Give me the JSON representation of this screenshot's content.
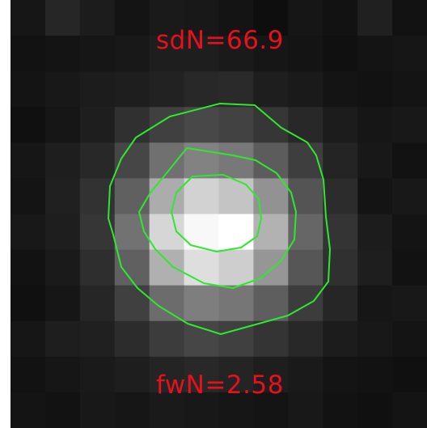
{
  "labels": {
    "top": "sdN=66.9",
    "bottom": "fwN=2.58"
  },
  "colors": {
    "label_text": "#e8101c",
    "contour": "#2ee82e",
    "frame_border": "#ffffff"
  },
  "image": {
    "grid_rows": 12,
    "grid_cols": 12,
    "pixel_gray": [
      [
        22,
        38,
        28,
        20,
        26,
        24,
        20,
        14,
        22,
        18,
        32,
        18
      ],
      [
        18,
        20,
        22,
        24,
        30,
        30,
        26,
        22,
        20,
        16,
        20,
        22
      ],
      [
        20,
        24,
        28,
        30,
        34,
        40,
        42,
        30,
        26,
        20,
        18,
        20
      ],
      [
        16,
        22,
        30,
        48,
        64,
        72,
        66,
        54,
        40,
        28,
        22,
        24
      ],
      [
        22,
        30,
        40,
        70,
        112,
        130,
        120,
        92,
        62,
        36,
        24,
        18
      ],
      [
        20,
        32,
        50,
        96,
        172,
        210,
        196,
        146,
        84,
        44,
        20,
        24
      ],
      [
        24,
        30,
        54,
        114,
        214,
        248,
        255,
        178,
        102,
        52,
        28,
        20
      ],
      [
        18,
        26,
        46,
        96,
        176,
        222,
        206,
        150,
        86,
        48,
        30,
        18
      ],
      [
        16,
        22,
        38,
        64,
        108,
        126,
        118,
        94,
        60,
        38,
        22,
        24
      ],
      [
        22,
        30,
        32,
        44,
        60,
        70,
        64,
        52,
        40,
        28,
        24,
        20
      ],
      [
        18,
        22,
        26,
        30,
        36,
        40,
        36,
        30,
        26,
        20,
        18,
        16
      ],
      [
        20,
        18,
        24,
        22,
        26,
        24,
        22,
        20,
        24,
        18,
        16,
        20
      ]
    ]
  }
}
